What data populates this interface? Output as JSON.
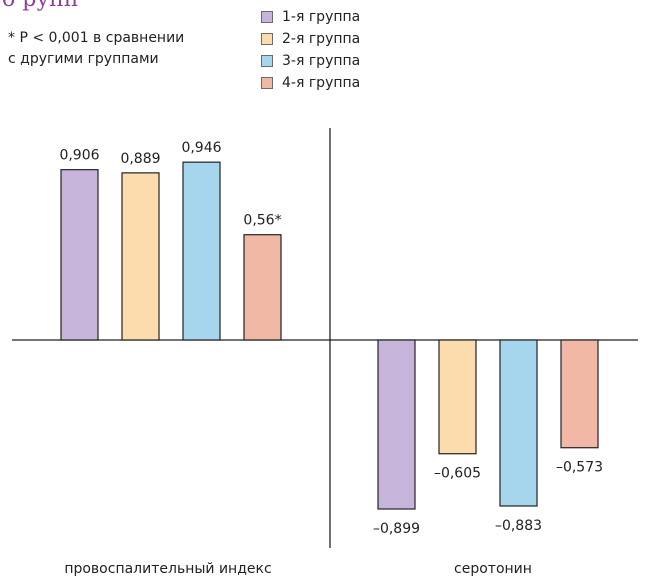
{
  "partial_heading": "б рупп",
  "chart_data": {
    "type": "bar",
    "categories": [
      "провоспалительный индекс",
      "серотонин"
    ],
    "series": [
      {
        "name": "1-я группа",
        "values": [
          0.906,
          -0.899
        ],
        "labels": [
          "0,906",
          "–0,899"
        ],
        "color": "#c6b4da"
      },
      {
        "name": "2-я группа",
        "values": [
          0.889,
          -0.605
        ],
        "labels": [
          "0,889",
          "–0,605"
        ],
        "color": "#fcdcac"
      },
      {
        "name": "3-я группа",
        "values": [
          0.946,
          -0.883
        ],
        "labels": [
          "0,946",
          "–0,883"
        ],
        "color": "#a6d6ee"
      },
      {
        "name": "4-я группа",
        "values": [
          0.56,
          -0.573
        ],
        "labels": [
          "0,56*",
          "–0,573"
        ],
        "color": "#f1b9a5"
      }
    ],
    "ylim": [
      -1,
      1
    ],
    "legend_position": "top",
    "grid": false,
    "annotation": [
      "* P < 0,001 в сравнении",
      "с другими группами"
    ]
  }
}
